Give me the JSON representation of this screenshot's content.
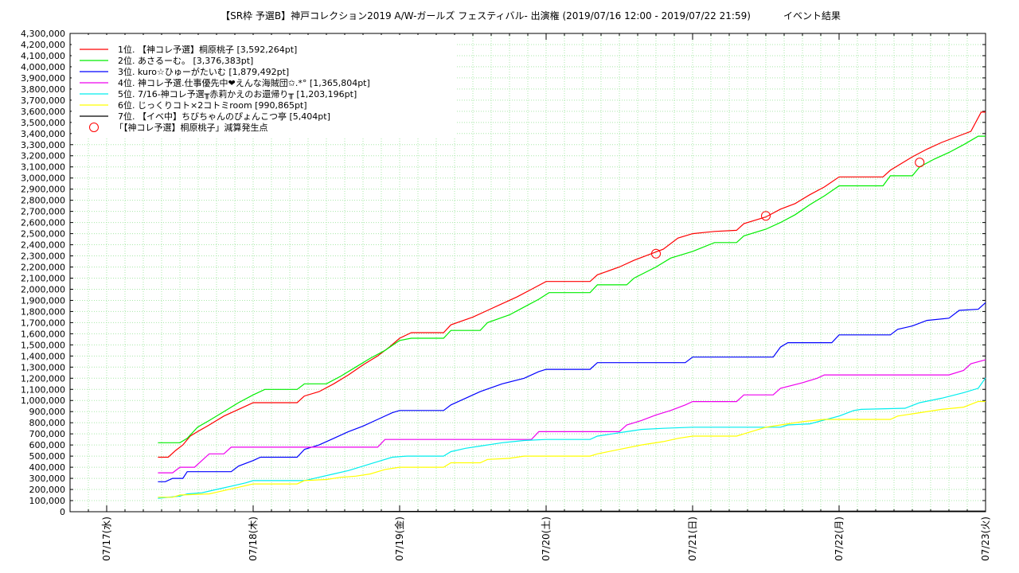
{
  "chart_data": {
    "type": "line",
    "title": "【SR枠 予選B】神戸コレクション2019 A/W-ガールズ フェスティバル- 出演権 (2019/07/16 12:00 - 2019/07/22 21:59)",
    "subtitle": "イベント結果",
    "x_unit": "days from 07/17 00:00",
    "x_range": [
      -0.25,
      6.0
    ],
    "ylim": [
      0,
      4300000
    ],
    "y_tick_step": 100000,
    "x_ticks": [
      {
        "x": 0,
        "label": "07/17(水)"
      },
      {
        "x": 1,
        "label": "07/18(木)"
      },
      {
        "x": 2,
        "label": "07/19(金)"
      },
      {
        "x": 3,
        "label": "07/20(土)"
      },
      {
        "x": 4,
        "label": "07/21(日)"
      },
      {
        "x": 5,
        "label": "07/22(月)"
      },
      {
        "x": 6,
        "label": "07/23(火)"
      }
    ],
    "grid": true,
    "legend_position": "top-left",
    "series": [
      {
        "name": "1位. 【神コレ予選】桐原桃子 [3,592,264pt]",
        "color": "#ff0000",
        "points": [
          [
            0.35,
            490000
          ],
          [
            0.42,
            490000
          ],
          [
            0.47,
            550000
          ],
          [
            0.52,
            600000
          ],
          [
            0.57,
            680000
          ],
          [
            0.62,
            720000
          ],
          [
            0.7,
            780000
          ],
          [
            0.8,
            860000
          ],
          [
            0.9,
            920000
          ],
          [
            1.0,
            980000
          ],
          [
            1.3,
            980000
          ],
          [
            1.35,
            1040000
          ],
          [
            1.45,
            1080000
          ],
          [
            1.55,
            1150000
          ],
          [
            1.65,
            1230000
          ],
          [
            1.75,
            1320000
          ],
          [
            1.85,
            1400000
          ],
          [
            1.93,
            1480000
          ],
          [
            2.0,
            1560000
          ],
          [
            2.08,
            1610000
          ],
          [
            2.3,
            1610000
          ],
          [
            2.35,
            1680000
          ],
          [
            2.5,
            1750000
          ],
          [
            2.6,
            1810000
          ],
          [
            2.7,
            1870000
          ],
          [
            2.8,
            1930000
          ],
          [
            2.9,
            2000000
          ],
          [
            3.0,
            2070000
          ],
          [
            3.3,
            2070000
          ],
          [
            3.35,
            2130000
          ],
          [
            3.5,
            2200000
          ],
          [
            3.6,
            2260000
          ],
          [
            3.7,
            2310000
          ],
          [
            3.8,
            2360000
          ],
          [
            3.9,
            2460000
          ],
          [
            4.0,
            2500000
          ],
          [
            4.15,
            2520000
          ],
          [
            4.3,
            2530000
          ],
          [
            4.35,
            2590000
          ],
          [
            4.5,
            2650000
          ],
          [
            4.6,
            2720000
          ],
          [
            4.7,
            2770000
          ],
          [
            4.8,
            2850000
          ],
          [
            4.9,
            2920000
          ],
          [
            5.0,
            3010000
          ],
          [
            5.3,
            3010000
          ],
          [
            5.35,
            3070000
          ],
          [
            5.5,
            3190000
          ],
          [
            5.6,
            3260000
          ],
          [
            5.7,
            3320000
          ],
          [
            5.8,
            3370000
          ],
          [
            5.9,
            3420000
          ],
          [
            5.97,
            3592264
          ],
          [
            6.0,
            3592264
          ]
        ]
      },
      {
        "name": "2位. あさるーむ。 [3,376,383pt]",
        "color": "#00ee00",
        "points": [
          [
            0.35,
            620000
          ],
          [
            0.5,
            620000
          ],
          [
            0.55,
            660000
          ],
          [
            0.62,
            760000
          ],
          [
            0.7,
            820000
          ],
          [
            0.8,
            900000
          ],
          [
            0.9,
            980000
          ],
          [
            1.0,
            1050000
          ],
          [
            1.08,
            1100000
          ],
          [
            1.3,
            1100000
          ],
          [
            1.35,
            1150000
          ],
          [
            1.5,
            1150000
          ],
          [
            1.6,
            1220000
          ],
          [
            1.7,
            1300000
          ],
          [
            1.8,
            1380000
          ],
          [
            1.9,
            1450000
          ],
          [
            2.0,
            1540000
          ],
          [
            2.08,
            1560000
          ],
          [
            2.3,
            1560000
          ],
          [
            2.35,
            1630000
          ],
          [
            2.55,
            1630000
          ],
          [
            2.6,
            1700000
          ],
          [
            2.75,
            1770000
          ],
          [
            2.85,
            1840000
          ],
          [
            2.95,
            1910000
          ],
          [
            3.02,
            1970000
          ],
          [
            3.3,
            1970000
          ],
          [
            3.35,
            2040000
          ],
          [
            3.55,
            2040000
          ],
          [
            3.6,
            2100000
          ],
          [
            3.75,
            2200000
          ],
          [
            3.85,
            2280000
          ],
          [
            4.0,
            2340000
          ],
          [
            4.15,
            2420000
          ],
          [
            4.3,
            2420000
          ],
          [
            4.35,
            2480000
          ],
          [
            4.5,
            2540000
          ],
          [
            4.6,
            2600000
          ],
          [
            4.7,
            2670000
          ],
          [
            4.8,
            2760000
          ],
          [
            4.9,
            2840000
          ],
          [
            5.0,
            2930000
          ],
          [
            5.3,
            2930000
          ],
          [
            5.35,
            3020000
          ],
          [
            5.5,
            3020000
          ],
          [
            5.55,
            3100000
          ],
          [
            5.65,
            3170000
          ],
          [
            5.75,
            3230000
          ],
          [
            5.85,
            3300000
          ],
          [
            5.95,
            3376383
          ],
          [
            6.0,
            3376383
          ]
        ]
      },
      {
        "name": "3位. kuro☆ひゅーがたいむ [1,879,492pt]",
        "color": "#0000ff",
        "points": [
          [
            0.35,
            270000
          ],
          [
            0.4,
            270000
          ],
          [
            0.45,
            300000
          ],
          [
            0.52,
            300000
          ],
          [
            0.55,
            360000
          ],
          [
            0.85,
            360000
          ],
          [
            0.9,
            410000
          ],
          [
            1.0,
            460000
          ],
          [
            1.05,
            490000
          ],
          [
            1.3,
            490000
          ],
          [
            1.35,
            560000
          ],
          [
            1.45,
            600000
          ],
          [
            1.55,
            660000
          ],
          [
            1.65,
            720000
          ],
          [
            1.75,
            770000
          ],
          [
            1.85,
            830000
          ],
          [
            1.95,
            890000
          ],
          [
            2.0,
            910000
          ],
          [
            2.3,
            910000
          ],
          [
            2.35,
            960000
          ],
          [
            2.45,
            1020000
          ],
          [
            2.55,
            1080000
          ],
          [
            2.7,
            1150000
          ],
          [
            2.85,
            1200000
          ],
          [
            2.95,
            1260000
          ],
          [
            3.0,
            1280000
          ],
          [
            3.3,
            1280000
          ],
          [
            3.35,
            1340000
          ],
          [
            3.95,
            1340000
          ],
          [
            4.0,
            1390000
          ],
          [
            4.55,
            1390000
          ],
          [
            4.6,
            1480000
          ],
          [
            4.65,
            1520000
          ],
          [
            4.95,
            1520000
          ],
          [
            5.0,
            1590000
          ],
          [
            5.35,
            1590000
          ],
          [
            5.4,
            1640000
          ],
          [
            5.5,
            1670000
          ],
          [
            5.6,
            1720000
          ],
          [
            5.75,
            1740000
          ],
          [
            5.82,
            1810000
          ],
          [
            5.95,
            1820000
          ],
          [
            6.0,
            1879492
          ]
        ]
      },
      {
        "name": "4位. 神コレ予選.仕事優先中❤えんな海賊団✩.*° [1,365,804pt]",
        "color": "#ee00ee",
        "points": [
          [
            0.35,
            350000
          ],
          [
            0.45,
            350000
          ],
          [
            0.5,
            400000
          ],
          [
            0.6,
            400000
          ],
          [
            0.65,
            460000
          ],
          [
            0.7,
            520000
          ],
          [
            0.8,
            520000
          ],
          [
            0.85,
            580000
          ],
          [
            1.85,
            580000
          ],
          [
            1.9,
            650000
          ],
          [
            2.9,
            650000
          ],
          [
            2.95,
            720000
          ],
          [
            3.5,
            720000
          ],
          [
            3.55,
            780000
          ],
          [
            3.65,
            820000
          ],
          [
            3.75,
            870000
          ],
          [
            3.85,
            910000
          ],
          [
            3.95,
            960000
          ],
          [
            4.0,
            990000
          ],
          [
            4.3,
            990000
          ],
          [
            4.35,
            1050000
          ],
          [
            4.55,
            1050000
          ],
          [
            4.6,
            1110000
          ],
          [
            4.75,
            1160000
          ],
          [
            4.85,
            1200000
          ],
          [
            4.9,
            1230000
          ],
          [
            5.75,
            1230000
          ],
          [
            5.85,
            1270000
          ],
          [
            5.9,
            1330000
          ],
          [
            6.0,
            1365804
          ]
        ]
      },
      {
        "name": "5位. 7/16-神コレ予選╥赤莉かえのお還帰り╥ [1,203,196pt]",
        "color": "#00eeee",
        "points": [
          [
            0.35,
            120000
          ],
          [
            0.5,
            140000
          ],
          [
            0.55,
            160000
          ],
          [
            0.65,
            170000
          ],
          [
            0.75,
            200000
          ],
          [
            0.85,
            230000
          ],
          [
            0.95,
            260000
          ],
          [
            1.0,
            280000
          ],
          [
            1.35,
            280000
          ],
          [
            1.45,
            310000
          ],
          [
            1.55,
            340000
          ],
          [
            1.65,
            370000
          ],
          [
            1.75,
            410000
          ],
          [
            1.85,
            450000
          ],
          [
            1.95,
            490000
          ],
          [
            2.05,
            500000
          ],
          [
            2.3,
            500000
          ],
          [
            2.35,
            540000
          ],
          [
            2.45,
            570000
          ],
          [
            2.55,
            590000
          ],
          [
            2.7,
            620000
          ],
          [
            2.85,
            640000
          ],
          [
            3.0,
            650000
          ],
          [
            3.3,
            650000
          ],
          [
            3.35,
            680000
          ],
          [
            3.45,
            700000
          ],
          [
            3.55,
            720000
          ],
          [
            3.65,
            740000
          ],
          [
            3.8,
            750000
          ],
          [
            4.0,
            760000
          ],
          [
            4.6,
            760000
          ],
          [
            4.65,
            780000
          ],
          [
            4.8,
            790000
          ],
          [
            5.0,
            860000
          ],
          [
            5.1,
            910000
          ],
          [
            5.15,
            920000
          ],
          [
            5.45,
            930000
          ],
          [
            5.55,
            980000
          ],
          [
            5.7,
            1020000
          ],
          [
            5.85,
            1070000
          ],
          [
            5.95,
            1110000
          ],
          [
            6.0,
            1203196
          ]
        ]
      },
      {
        "name": "6位. じっくりコト×2コトミroom [990,865pt]",
        "color": "#ffff00",
        "points": [
          [
            0.35,
            130000
          ],
          [
            0.45,
            130000
          ],
          [
            0.5,
            150000
          ],
          [
            0.7,
            160000
          ],
          [
            0.8,
            190000
          ],
          [
            0.9,
            220000
          ],
          [
            1.0,
            250000
          ],
          [
            1.3,
            250000
          ],
          [
            1.35,
            280000
          ],
          [
            1.5,
            290000
          ],
          [
            1.6,
            310000
          ],
          [
            1.7,
            320000
          ],
          [
            1.8,
            340000
          ],
          [
            1.9,
            380000
          ],
          [
            2.0,
            400000
          ],
          [
            2.3,
            400000
          ],
          [
            2.35,
            440000
          ],
          [
            2.55,
            440000
          ],
          [
            2.6,
            470000
          ],
          [
            2.75,
            480000
          ],
          [
            2.85,
            500000
          ],
          [
            3.0,
            500000
          ],
          [
            3.3,
            500000
          ],
          [
            3.35,
            520000
          ],
          [
            3.5,
            560000
          ],
          [
            3.65,
            600000
          ],
          [
            3.8,
            630000
          ],
          [
            3.9,
            660000
          ],
          [
            4.0,
            680000
          ],
          [
            4.3,
            680000
          ],
          [
            4.35,
            700000
          ],
          [
            4.5,
            760000
          ],
          [
            4.6,
            780000
          ],
          [
            4.75,
            810000
          ],
          [
            4.9,
            830000
          ],
          [
            5.35,
            830000
          ],
          [
            5.4,
            860000
          ],
          [
            5.55,
            890000
          ],
          [
            5.7,
            920000
          ],
          [
            5.85,
            940000
          ],
          [
            5.95,
            990865
          ],
          [
            6.0,
            990865
          ]
        ]
      },
      {
        "name": "7位. 【イベ中】ちびちゃんのぴょんこつ亭 [5,404pt]",
        "color": "#000000",
        "points": [
          [
            1.0,
            0
          ],
          [
            2.0,
            3000
          ],
          [
            3.0,
            4000
          ],
          [
            4.0,
            4500
          ],
          [
            5.0,
            5000
          ],
          [
            6.0,
            5404
          ]
        ]
      }
    ],
    "markers": {
      "name": "「【神コレ予選】桐原桃子」減算発生点",
      "color": "#ff0000",
      "points": [
        [
          3.75,
          2320000
        ],
        [
          4.5,
          2660000
        ],
        [
          5.55,
          3140000
        ]
      ]
    }
  }
}
